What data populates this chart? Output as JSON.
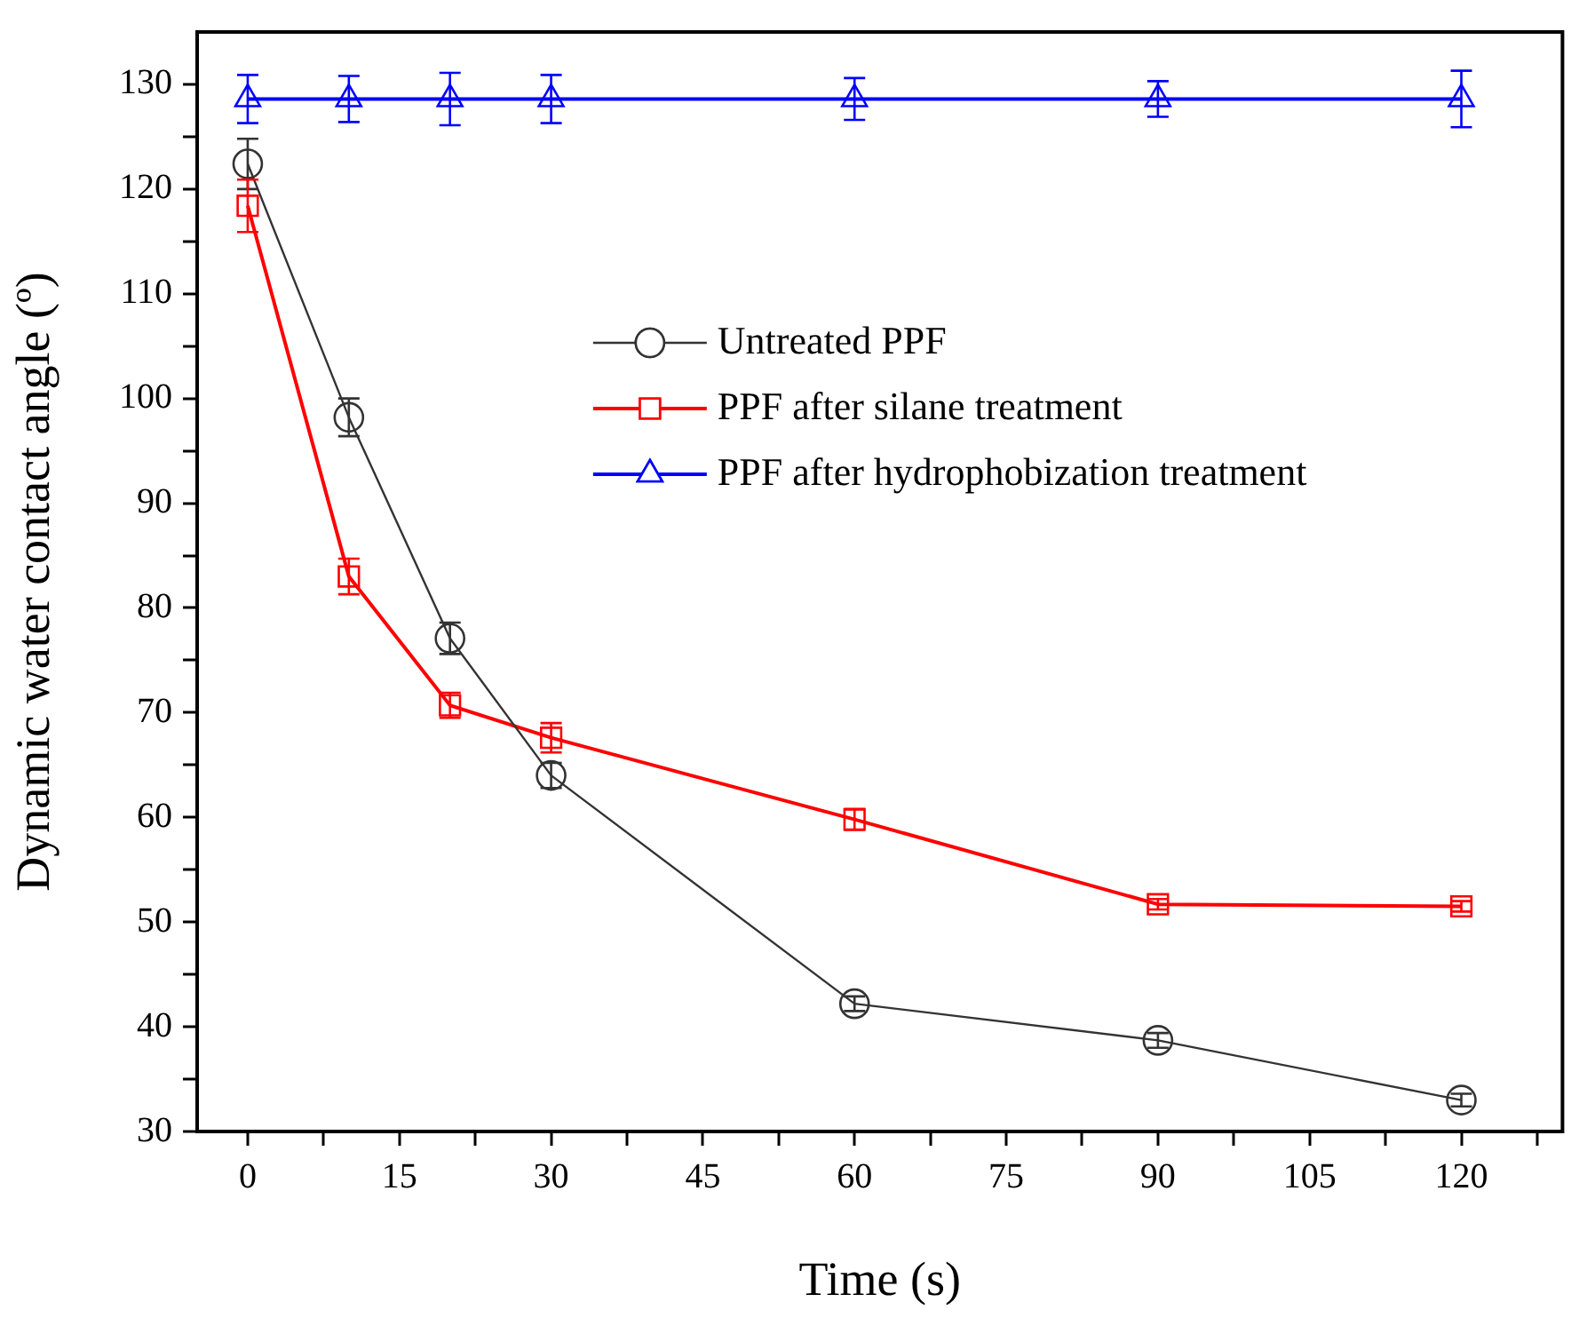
{
  "chart_data": {
    "type": "line",
    "xlabel": "Time (s)",
    "ylabel": "Dynamic water contact angle (º)",
    "x": [
      0,
      10,
      20,
      30,
      60,
      90,
      120
    ],
    "series": [
      {
        "name": "Untreated PPF",
        "color": "#333333",
        "marker": "circle",
        "values": [
          122.4,
          98.2,
          77.1,
          64.0,
          42.2,
          38.7,
          33.0
        ],
        "errors": [
          2.4,
          1.8,
          1.5,
          1.2,
          0.7,
          0.7,
          0.6
        ]
      },
      {
        "name": "PPF after silane treatment",
        "color": "#ff0000",
        "marker": "square",
        "values": [
          118.4,
          83.0,
          70.7,
          67.6,
          59.8,
          51.7,
          51.5
        ],
        "errors": [
          2.5,
          1.7,
          1.2,
          1.4,
          1.0,
          0.5,
          0.5
        ]
      },
      {
        "name": "PPF after hydrophobization treatment",
        "color": "#0000ff",
        "marker": "triangle",
        "values": [
          128.6,
          128.6,
          128.6,
          128.6,
          128.6,
          128.6,
          128.6
        ],
        "errors": [
          2.3,
          2.2,
          2.5,
          2.3,
          2.0,
          1.7,
          2.7
        ]
      }
    ],
    "xlim": [
      -5,
      130
    ],
    "ylim": [
      30,
      135
    ],
    "xticks": [
      0,
      {
        "value": 7.5,
        "label": null
      },
      15,
      {
        "value": 22.5,
        "label": null
      },
      30,
      {
        "value": 37.5,
        "label": null
      },
      45,
      {
        "value": 52.5,
        "label": null
      },
      60,
      {
        "value": 67.5,
        "label": null
      },
      75,
      {
        "value": 82.5,
        "label": null
      },
      90,
      {
        "value": 97.5,
        "label": null
      },
      105,
      {
        "value": 112.5,
        "label": null
      },
      120,
      {
        "value": 127.5,
        "label": null
      }
    ],
    "yticks": [
      30,
      {
        "value": 35,
        "label": null
      },
      40,
      {
        "value": 45,
        "label": null
      },
      50,
      {
        "value": 55,
        "label": null
      },
      60,
      {
        "value": 65,
        "label": null
      },
      70,
      {
        "value": 75,
        "label": null
      },
      80,
      {
        "value": 85,
        "label": null
      },
      90,
      {
        "value": 95,
        "label": null
      },
      100,
      {
        "value": 105,
        "label": null
      },
      110,
      {
        "value": 115,
        "label": null
      },
      120,
      {
        "value": 125,
        "label": null
      },
      130
    ],
    "legend": "top right"
  }
}
